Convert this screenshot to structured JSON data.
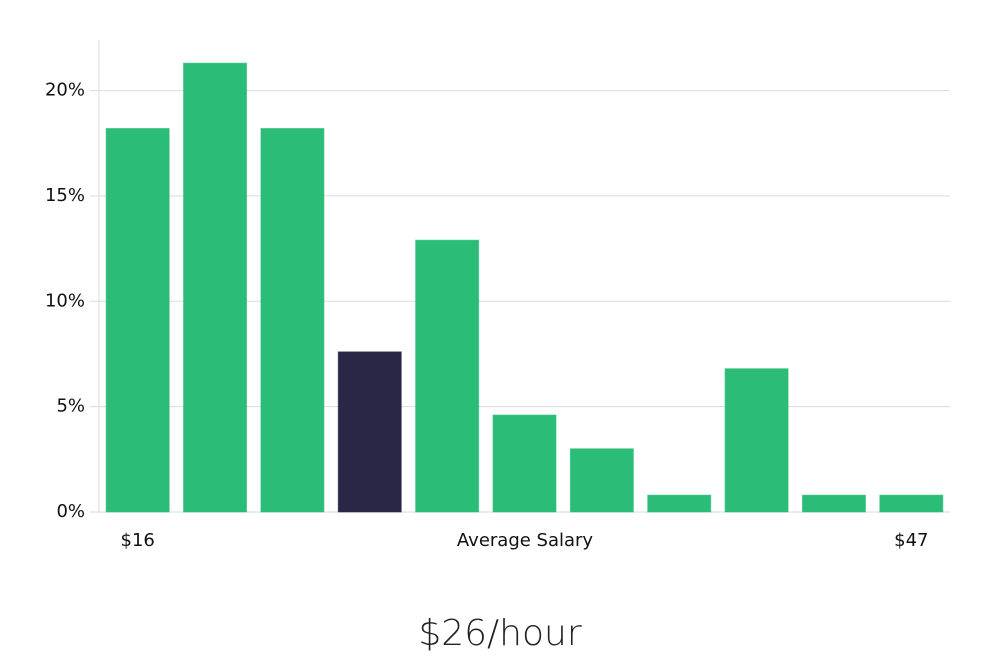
{
  "chart_data": {
    "type": "bar",
    "categories": [
      "$16",
      null,
      null,
      null,
      null,
      null,
      null,
      null,
      null,
      null,
      "$47"
    ],
    "values": [
      18.2,
      21.3,
      18.2,
      7.6,
      12.9,
      4.6,
      3.0,
      0.8,
      6.8,
      0.8,
      0.8
    ],
    "colors": [
      "#2bbd77",
      "#2bbd77",
      "#2bbd77",
      "#2a2746",
      "#2bbd77",
      "#2bbd77",
      "#2bbd77",
      "#2bbd77",
      "#2bbd77",
      "#2bbd77",
      "#2bbd77"
    ],
    "x_label": "Average Salary",
    "highlight_label": "$26/hour",
    "ylim": [
      0,
      22.4
    ],
    "yticks": [
      {
        "value": 0,
        "label": "0%"
      },
      {
        "value": 5,
        "label": "5%"
      },
      {
        "value": 10,
        "label": "10%"
      },
      {
        "value": 15,
        "label": "15%"
      },
      {
        "value": 20,
        "label": "20%"
      }
    ],
    "grid": true
  }
}
